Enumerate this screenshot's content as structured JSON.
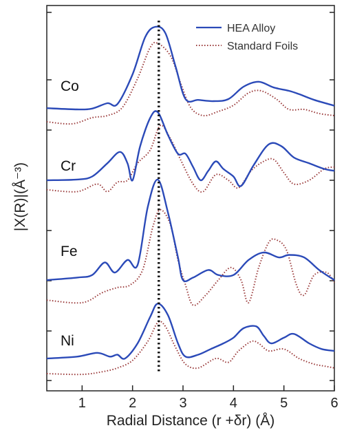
{
  "chart_data": {
    "type": "line",
    "xlabel": "Radial Distance (r +δr) (Å)",
    "ylabel": "|X(R)|(Å⁻³)",
    "xlim": [
      0.3,
      6.0
    ],
    "x_ticks": [
      1,
      2,
      3,
      4,
      5,
      6
    ],
    "x_tick_labels": [
      "1",
      "2",
      "3",
      "4",
      "5",
      "6"
    ],
    "reference_line_x": 2.52,
    "legend": {
      "position": "top-right",
      "entries": [
        "HEA Alloy",
        "Standard Foils"
      ]
    },
    "series_styles": {
      "HEA Alloy": {
        "color": "#2b4ab8",
        "dash": "solid"
      },
      "Standard Foils": {
        "color": "#9a3a3a",
        "dash": "dotted"
      }
    },
    "panels": [
      {
        "element": "Co",
        "series": [
          {
            "name": "HEA Alloy",
            "points": [
              [
                0.3,
                0.08
              ],
              [
                0.9,
                0.05
              ],
              [
                1.2,
                0.07
              ],
              [
                1.5,
                0.2
              ],
              [
                1.7,
                0.18
              ],
              [
                2.0,
                0.9
              ],
              [
                2.25,
                1.8
              ],
              [
                2.45,
                2.05
              ],
              [
                2.65,
                1.9
              ],
              [
                2.85,
                1.1
              ],
              [
                3.05,
                0.3
              ],
              [
                3.3,
                0.28
              ],
              [
                3.6,
                0.25
              ],
              [
                3.9,
                0.3
              ],
              [
                4.2,
                0.6
              ],
              [
                4.5,
                0.72
              ],
              [
                4.8,
                0.58
              ],
              [
                5.1,
                0.5
              ],
              [
                5.3,
                0.42
              ],
              [
                5.6,
                0.28
              ],
              [
                6.0,
                0.14
              ]
            ]
          },
          {
            "name": "Standard Foils",
            "points": [
              [
                0.3,
                -0.25
              ],
              [
                0.8,
                -0.3
              ],
              [
                1.2,
                -0.15
              ],
              [
                1.5,
                -0.1
              ],
              [
                1.8,
                0.1
              ],
              [
                2.1,
                0.8
              ],
              [
                2.35,
                1.55
              ],
              [
                2.5,
                1.65
              ],
              [
                2.75,
                1.35
              ],
              [
                2.95,
                0.7
              ],
              [
                3.15,
                0.1
              ],
              [
                3.4,
                -0.1
              ],
              [
                3.7,
                0.0
              ],
              [
                4.0,
                0.15
              ],
              [
                4.3,
                0.45
              ],
              [
                4.55,
                0.5
              ],
              [
                4.85,
                0.3
              ],
              [
                5.1,
                0.05
              ],
              [
                5.4,
                0.05
              ],
              [
                5.7,
                -0.05
              ],
              [
                6.0,
                -0.1
              ]
            ]
          }
        ]
      },
      {
        "element": "Cr",
        "series": [
          {
            "name": "HEA Alloy",
            "points": [
              [
                0.3,
                0.0
              ],
              [
                0.9,
                0.02
              ],
              [
                1.2,
                0.1
              ],
              [
                1.5,
                0.45
              ],
              [
                1.75,
                0.75
              ],
              [
                1.9,
                0.45
              ],
              [
                2.0,
                0.0
              ],
              [
                2.15,
                0.9
              ],
              [
                2.35,
                1.65
              ],
              [
                2.5,
                1.8
              ],
              [
                2.7,
                1.2
              ],
              [
                2.9,
                0.7
              ],
              [
                3.05,
                0.7
              ],
              [
                3.2,
                0.35
              ],
              [
                3.35,
                0.0
              ],
              [
                3.5,
                0.25
              ],
              [
                3.65,
                0.5
              ],
              [
                3.8,
                0.3
              ],
              [
                4.0,
                0.1
              ],
              [
                4.15,
                -0.15
              ],
              [
                4.4,
                0.4
              ],
              [
                4.7,
                0.95
              ],
              [
                4.95,
                0.9
              ],
              [
                5.2,
                0.6
              ],
              [
                5.5,
                0.45
              ],
              [
                5.8,
                0.3
              ],
              [
                6.0,
                0.25
              ]
            ]
          },
          {
            "name": "Standard Foils",
            "points": [
              [
                0.3,
                -0.25
              ],
              [
                0.9,
                -0.3
              ],
              [
                1.3,
                -0.1
              ],
              [
                1.5,
                -0.3
              ],
              [
                1.7,
                -0.05
              ],
              [
                1.9,
                0.0
              ],
              [
                2.1,
                0.45
              ],
              [
                2.35,
                0.8
              ],
              [
                2.55,
                1.45
              ],
              [
                2.75,
                1.1
              ],
              [
                2.95,
                0.55
              ],
              [
                3.2,
                -0.1
              ],
              [
                3.4,
                -0.3
              ],
              [
                3.65,
                0.15
              ],
              [
                3.9,
                0.0
              ],
              [
                4.1,
                -0.2
              ],
              [
                4.35,
                0.25
              ],
              [
                4.6,
                0.5
              ],
              [
                4.8,
                0.55
              ],
              [
                5.0,
                0.2
              ],
              [
                5.2,
                -0.1
              ],
              [
                5.5,
                0.0
              ],
              [
                5.8,
                0.3
              ],
              [
                6.0,
                0.35
              ]
            ]
          }
        ]
      },
      {
        "element": "Fe",
        "series": [
          {
            "name": "HEA Alloy",
            "points": [
              [
                0.3,
                0.0
              ],
              [
                0.9,
                0.05
              ],
              [
                1.2,
                0.1
              ],
              [
                1.45,
                0.35
              ],
              [
                1.65,
                0.15
              ],
              [
                1.9,
                0.4
              ],
              [
                2.1,
                0.3
              ],
              [
                2.3,
                1.45
              ],
              [
                2.5,
                2.0
              ],
              [
                2.7,
                1.35
              ],
              [
                2.9,
                0.45
              ],
              [
                3.0,
                0.0
              ],
              [
                3.2,
                0.05
              ],
              [
                3.5,
                0.2
              ],
              [
                3.7,
                0.1
              ],
              [
                4.0,
                0.1
              ],
              [
                4.3,
                0.4
              ],
              [
                4.6,
                0.55
              ],
              [
                4.9,
                0.45
              ],
              [
                5.1,
                0.5
              ],
              [
                5.4,
                0.45
              ],
              [
                5.7,
                0.2
              ],
              [
                6.0,
                0.0
              ]
            ]
          },
          {
            "name": "Standard Foils",
            "points": [
              [
                0.3,
                -0.4
              ],
              [
                1.0,
                -0.45
              ],
              [
                1.4,
                -0.25
              ],
              [
                1.7,
                -0.15
              ],
              [
                1.95,
                -0.1
              ],
              [
                2.2,
                0.2
              ],
              [
                2.4,
                1.05
              ],
              [
                2.55,
                1.4
              ],
              [
                2.75,
                1.1
              ],
              [
                2.9,
                0.4
              ],
              [
                3.05,
                -0.1
              ],
              [
                3.2,
                -0.5
              ],
              [
                3.45,
                -0.3
              ],
              [
                3.7,
                0.0
              ],
              [
                3.95,
                0.25
              ],
              [
                4.15,
                0.0
              ],
              [
                4.3,
                -0.45
              ],
              [
                4.5,
                0.25
              ],
              [
                4.7,
                0.75
              ],
              [
                4.85,
                0.8
              ],
              [
                5.05,
                0.6
              ],
              [
                5.25,
                -0.1
              ],
              [
                5.4,
                -0.3
              ],
              [
                5.6,
                0.1
              ],
              [
                5.85,
                0.15
              ],
              [
                6.0,
                -0.05
              ]
            ]
          }
        ]
      },
      {
        "element": "Ni",
        "series": [
          {
            "name": "HEA Alloy",
            "points": [
              [
                0.3,
                0.0
              ],
              [
                0.9,
                0.05
              ],
              [
                1.3,
                0.15
              ],
              [
                1.55,
                0.05
              ],
              [
                1.7,
                0.1
              ],
              [
                1.85,
                0.0
              ],
              [
                2.1,
                0.4
              ],
              [
                2.35,
                1.1
              ],
              [
                2.5,
                1.45
              ],
              [
                2.7,
                1.15
              ],
              [
                2.9,
                0.4
              ],
              [
                3.05,
                0.05
              ],
              [
                3.3,
                0.1
              ],
              [
                3.55,
                0.25
              ],
              [
                3.8,
                0.4
              ],
              [
                4.0,
                0.55
              ],
              [
                4.2,
                0.8
              ],
              [
                4.45,
                0.85
              ],
              [
                4.6,
                0.6
              ],
              [
                4.75,
                0.4
              ],
              [
                5.0,
                0.55
              ],
              [
                5.2,
                0.65
              ],
              [
                5.5,
                0.4
              ],
              [
                5.75,
                0.25
              ],
              [
                6.0,
                0.2
              ]
            ]
          },
          {
            "name": "Standard Foils",
            "points": [
              [
                0.3,
                -0.4
              ],
              [
                1.0,
                -0.42
              ],
              [
                1.4,
                -0.35
              ],
              [
                1.7,
                -0.25
              ],
              [
                2.0,
                -0.05
              ],
              [
                2.3,
                0.45
              ],
              [
                2.5,
                0.95
              ],
              [
                2.65,
                0.85
              ],
              [
                2.85,
                0.3
              ],
              [
                3.05,
                -0.15
              ],
              [
                3.3,
                -0.25
              ],
              [
                3.65,
                0.0
              ],
              [
                3.9,
                -0.1
              ],
              [
                4.1,
                0.2
              ],
              [
                4.35,
                0.45
              ],
              [
                4.5,
                0.4
              ],
              [
                4.7,
                0.2
              ],
              [
                5.0,
                0.25
              ],
              [
                5.3,
                0.0
              ],
              [
                5.6,
                -0.15
              ],
              [
                5.8,
                -0.2
              ],
              [
                6.0,
                -0.25
              ]
            ]
          }
        ]
      }
    ]
  }
}
